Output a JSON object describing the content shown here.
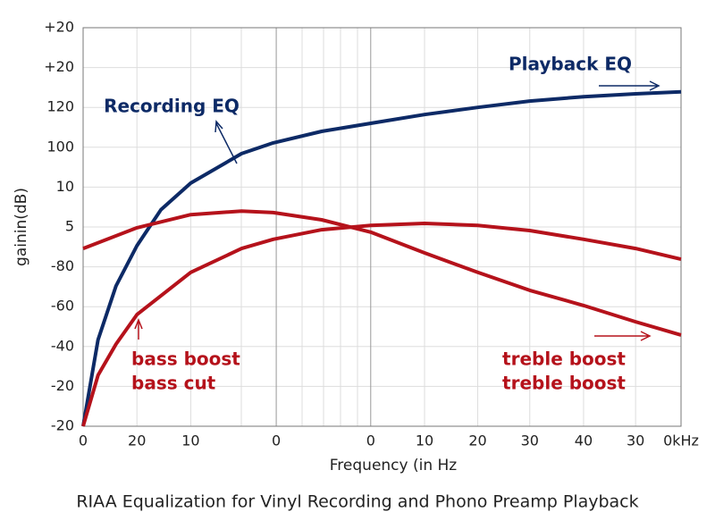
{
  "chart_data": {
    "type": "line",
    "caption": "RIAA Equalization for Vinyl Recording and Phono Preamp Playback",
    "x_label": "Frequency (in Hz",
    "y_label": "gainin(dB)",
    "xlim": [
      0,
      100
    ],
    "ylim": [
      0,
      10
    ],
    "xticks": [
      {
        "value": 0,
        "label": "0"
      },
      {
        "value": 9,
        "label": "20"
      },
      {
        "value": 18,
        "label": "10"
      },
      {
        "value": 32.3,
        "label": "0"
      },
      {
        "value": 48.1,
        "label": "0"
      },
      {
        "value": 57.1,
        "label": "10"
      },
      {
        "value": 66,
        "label": "20"
      },
      {
        "value": 74.7,
        "label": "30"
      },
      {
        "value": 83.7,
        "label": "40"
      },
      {
        "value": 92.4,
        "label": "30"
      },
      {
        "value": 100,
        "label": "0kHz"
      }
    ],
    "yticks": [
      {
        "value": 0,
        "label": "-20"
      },
      {
        "value": 1,
        "label": "-20"
      },
      {
        "value": 2,
        "label": "-40"
      },
      {
        "value": 3,
        "label": "-60"
      },
      {
        "value": 4,
        "label": "-80"
      },
      5,
      {
        "value": 6,
        "label": "10"
      },
      {
        "value": 7,
        "label": "100"
      },
      {
        "value": 8,
        "label": "120"
      },
      {
        "value": 9,
        "label": "+20"
      },
      {
        "value": 10,
        "label": "+20"
      }
    ],
    "grid": true,
    "series": [
      {
        "name": "Playback EQ",
        "color": "#0d2a66",
        "x": [
          0,
          2.5,
          5.5,
          9,
          13,
          18,
          26.5,
          31.8,
          39.9,
          48.1,
          57.1,
          66,
          74.7,
          83.7,
          92.4,
          100
        ],
        "values": [
          0,
          2.17,
          3.52,
          4.53,
          5.43,
          6.1,
          6.84,
          7.11,
          7.4,
          7.6,
          7.82,
          8.0,
          8.16,
          8.27,
          8.34,
          8.39
        ]
      },
      {
        "name": "bass boost",
        "color": "#b5121b",
        "x": [
          0,
          9,
          18,
          26.5,
          31.8,
          39.9,
          48.1,
          57.1,
          66,
          74.7,
          83.7,
          92.4,
          100
        ],
        "values": [
          4.46,
          4.98,
          5.31,
          5.4,
          5.36,
          5.18,
          4.87,
          4.35,
          3.86,
          3.41,
          3.03,
          2.62,
          2.29
        ]
      },
      {
        "name": "treble boost",
        "color": "#b5121b",
        "x": [
          0,
          2.5,
          5.5,
          9,
          18,
          26.5,
          31.8,
          39.9,
          48.1,
          57.1,
          66,
          74.7,
          83.7,
          92.4,
          100
        ],
        "values": [
          0,
          1.28,
          2.06,
          2.8,
          3.86,
          4.46,
          4.69,
          4.93,
          5.04,
          5.09,
          5.04,
          4.91,
          4.69,
          4.46,
          4.19
        ]
      }
    ],
    "annotations": [
      "Recording EQ",
      "bass cut",
      "treble boost"
    ]
  }
}
